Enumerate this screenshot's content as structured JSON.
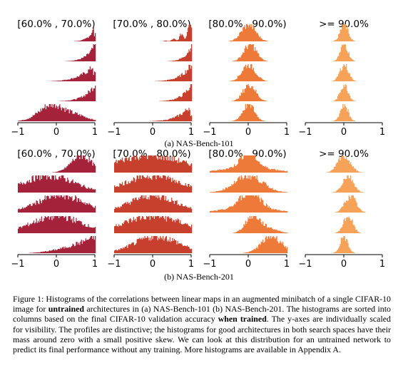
{
  "panels": [
    {
      "subcaption": "(a) NAS-Bench-101",
      "columns": [
        {
          "title": "[60.0% , 70.0%)",
          "color": "#a5233a"
        },
        {
          "title": "[70.0% , 80.0%)",
          "color": "#c7402d"
        },
        {
          "title": "[80.0% , 90.0%)",
          "color": "#ee7a3a"
        },
        {
          "title": ">= 90.0%",
          "color": "#f6a259"
        }
      ],
      "tick_labels": [
        "−1",
        "0",
        "1"
      ]
    },
    {
      "subcaption": "(b) NAS-Bench-201",
      "columns": [
        {
          "title": "[60.0% , 70.0%)",
          "color": "#a5233a"
        },
        {
          "title": "[70.0% , 80.0%)",
          "color": "#c7402d"
        },
        {
          "title": "[80.0% , 90.0%)",
          "color": "#ee7a3a"
        },
        {
          "title": ">= 90.0%",
          "color": "#f6a259"
        }
      ],
      "tick_labels": [
        "−1",
        "0",
        "1"
      ]
    }
  ],
  "caption": {
    "p1": "Figure 1: Histograms of the correlations between linear maps in an augmented minibatch of a single CIFAR-10 image for ",
    "b1": "untrained",
    "p2": " architectures in (a) NAS-Bench-101 (b) NAS-Bench-201. The histograms are sorted into columns based on the final CIFAR-10 validation accuracy ",
    "b2": "when trained",
    "p3": ". The y-axes are individually scaled for visibility. The profiles are distinctive; the histograms for good architectures in both search spaces have their mass around zero with a small positive skew. We can look at this distribution for an untrained network to predict its final performance without any training. More histograms are available in Appendix A."
  }
}
